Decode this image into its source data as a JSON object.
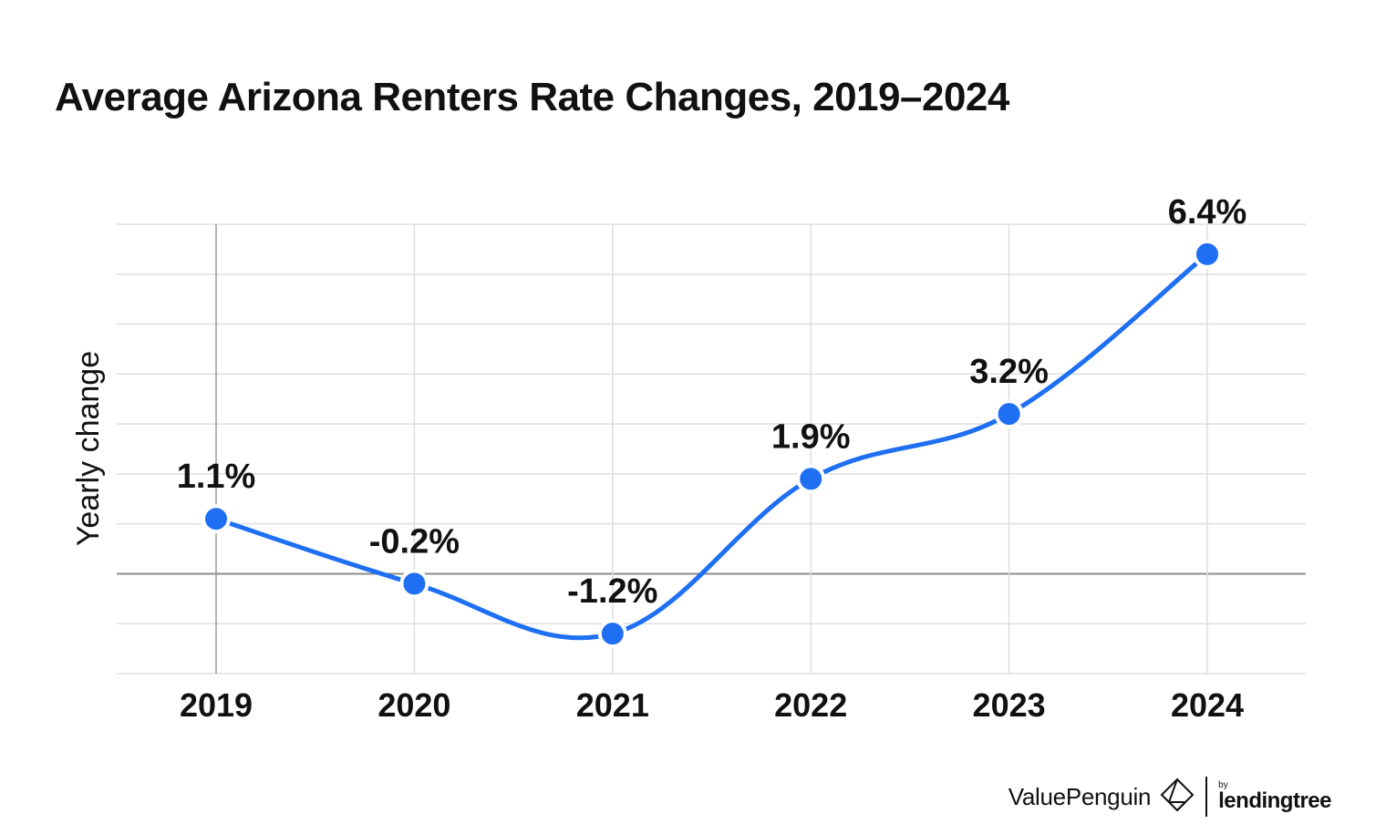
{
  "header": {
    "title": "Average Arizona Renters Rate Changes, 2019–2024"
  },
  "chart_data": {
    "type": "line",
    "title": "Average Arizona Renters Rate Changes, 2019–2024",
    "xlabel": "",
    "ylabel": "Yearly change",
    "categories": [
      "2019",
      "2020",
      "2021",
      "2022",
      "2023",
      "2024"
    ],
    "values": [
      1.1,
      -0.2,
      -1.2,
      1.9,
      3.2,
      6.4
    ],
    "data_labels": [
      "1.1%",
      "-0.2%",
      "-1.2%",
      "1.9%",
      "3.2%",
      "6.4%"
    ],
    "ylim": [
      -2,
      7
    ],
    "y_gridlines": [
      -2,
      -1,
      0,
      1,
      2,
      3,
      4,
      5,
      6,
      7
    ],
    "grid": true,
    "y_tick_labels_shown": false,
    "line_style": "smooth",
    "colors": {
      "line": "#1f6ff2",
      "marker": "#1f6ff2",
      "marker_stroke": "#ffffff",
      "grid": "#dedede",
      "zero_line": "#8c8c8c",
      "text": "#111111"
    }
  },
  "footer": {
    "brand": "ValuePenguin",
    "by": "by",
    "partner": "lendingtree",
    "brand_icon": "penguin-logo-icon"
  }
}
